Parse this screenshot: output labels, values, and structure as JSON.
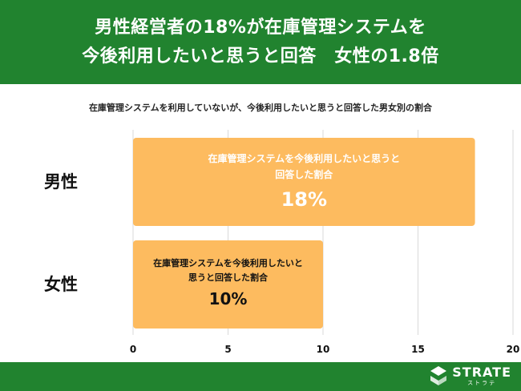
{
  "header": {
    "title_line1": "男性経営者の18%が在庫管理システムを",
    "title_line2": "今後利用したいと思うと回答　女性の1.8倍"
  },
  "chart_data": {
    "type": "bar",
    "orientation": "horizontal",
    "title": "在庫管理システムを利用していないが、今後利用したいと思うと回答した男女別の割合",
    "categories": [
      "男性",
      "女性"
    ],
    "values": [
      18,
      10
    ],
    "bar_text": [
      {
        "line1": "在庫管理システムを今後利用したいと思うと",
        "line2": "回答した割合",
        "value": "18%"
      },
      {
        "line1": "在庫管理システムを今後利用したいと",
        "line2": "思うと回答した割合",
        "value": "10%"
      }
    ],
    "xlim": [
      0,
      20
    ],
    "x_ticks": [
      0,
      5,
      10,
      15,
      20
    ],
    "grid": true,
    "bar_color": "#fdbb5f"
  },
  "colors": {
    "brand_green": "#21832f",
    "bar": "#fdbb5f"
  },
  "footer": {
    "logo_icon": "strate-logo-icon",
    "logo_word": "STRATE",
    "logo_kana": "ストラテ"
  }
}
